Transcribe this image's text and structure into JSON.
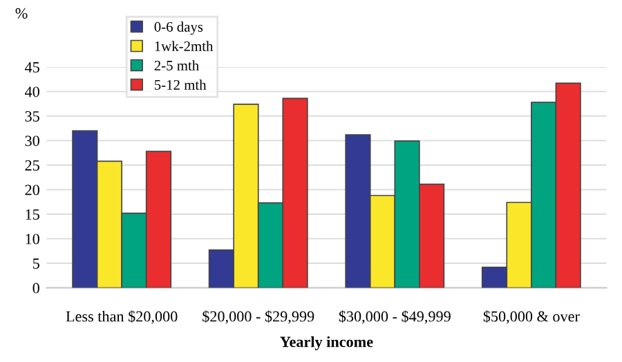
{
  "chart_data": {
    "type": "bar",
    "xlabel": "Yearly income",
    "ylabel": "%",
    "categories": [
      "Less than $20,000",
      "$20,000 - $29,999",
      "$30,000 - $49,999",
      "$50,000 & over"
    ],
    "series": [
      {
        "name": "0-6 days",
        "color": "#333a94",
        "values": [
          32.0,
          7.7,
          31.2,
          4.2
        ]
      },
      {
        "name": "1wk-2mth",
        "color": "#fbe72a",
        "values": [
          25.8,
          37.4,
          18.8,
          17.4
        ]
      },
      {
        "name": "2-5 mth",
        "color": "#00a480",
        "values": [
          15.2,
          17.3,
          29.9,
          37.8
        ]
      },
      {
        "name": "5-12 mth",
        "color": "#ea2d2e",
        "values": [
          27.8,
          38.6,
          21.1,
          41.7
        ]
      }
    ],
    "ylim": [
      0,
      45
    ],
    "yticks": [
      0,
      5,
      10,
      15,
      20,
      25,
      30,
      35,
      40,
      45
    ],
    "grid": "y",
    "legend": "top left"
  }
}
